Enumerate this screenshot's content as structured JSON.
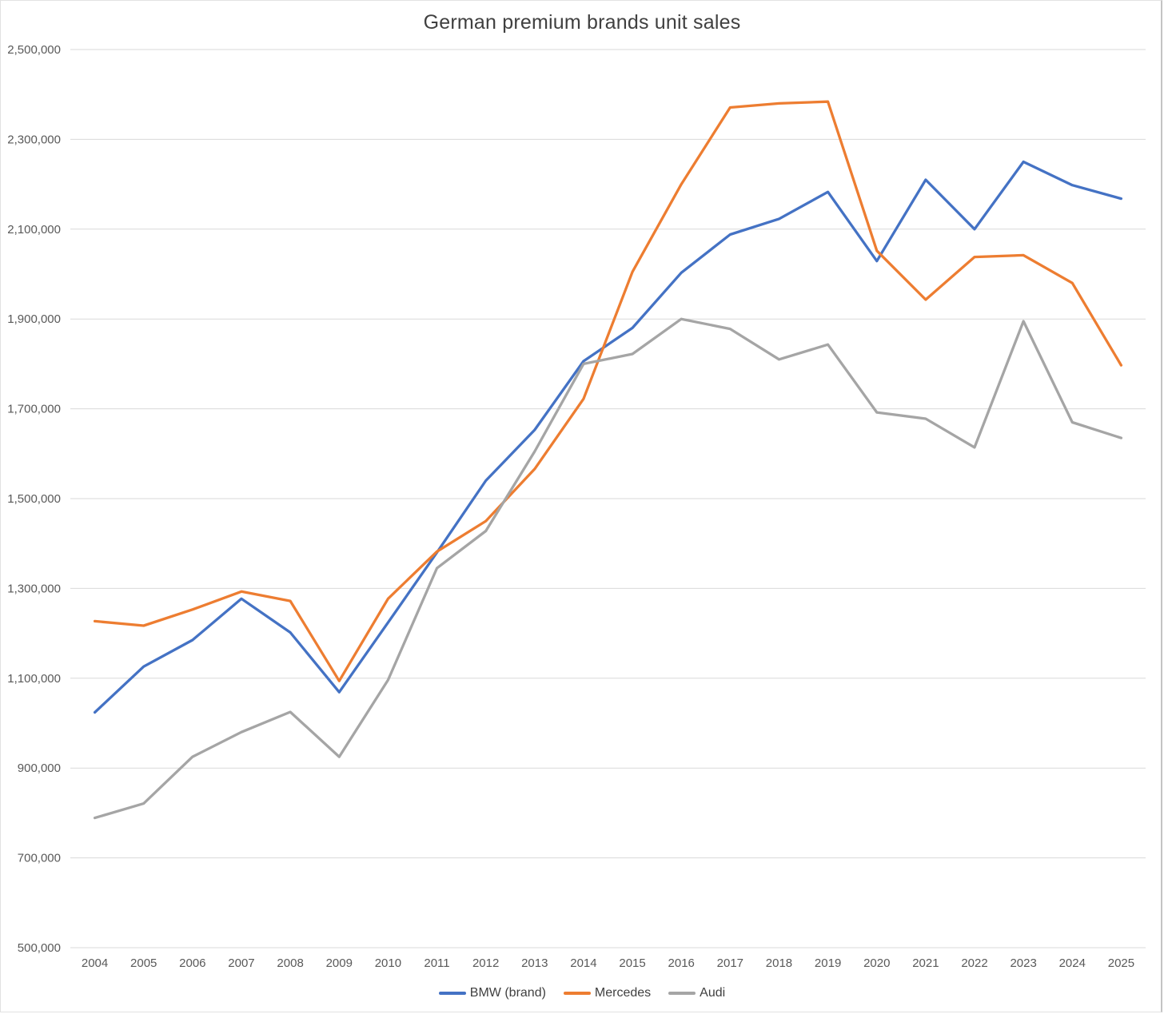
{
  "chart": {
    "title": "German premium brands unit sales"
  },
  "chart_data": {
    "type": "line",
    "title": "German premium brands unit sales",
    "xlabel": "",
    "ylabel": "",
    "grid": true,
    "legend_position": "bottom",
    "ylim": [
      500000,
      2500000
    ],
    "ytick_step": 200000,
    "yticks": [
      500000,
      700000,
      900000,
      1100000,
      1300000,
      1500000,
      1700000,
      1900000,
      2100000,
      2300000,
      2500000
    ],
    "ytick_labels": [
      "500,000",
      "700,000",
      "900,000",
      "1,100,000",
      "1,300,000",
      "1,500,000",
      "1,700,000",
      "1,900,000",
      "2,100,000",
      "2,300,000",
      "2,500,000"
    ],
    "x": [
      2004,
      2005,
      2006,
      2007,
      2008,
      2009,
      2010,
      2011,
      2012,
      2013,
      2014,
      2015,
      2016,
      2017,
      2018,
      2019,
      2020,
      2021,
      2022,
      2023,
      2024,
      2025
    ],
    "series": [
      {
        "name": "BMW (brand)",
        "color": "#4472C4",
        "values": [
          1024000,
          1126000,
          1185000,
          1277000,
          1202000,
          1069000,
          1224000,
          1380000,
          1540000,
          1653000,
          1806000,
          1880000,
          2003000,
          2088000,
          2123000,
          2183000,
          2029000,
          2210000,
          2100000,
          2250000,
          2198000,
          2168000
        ]
      },
      {
        "name": "Mercedes",
        "color": "#ED7D31",
        "values": [
          1227000,
          1217000,
          1253000,
          1293000,
          1272000,
          1094000,
          1277000,
          1382000,
          1450000,
          1566000,
          1722000,
          2005000,
          2200000,
          2371000,
          2380000,
          2384000,
          2052000,
          1943000,
          2038000,
          2042000,
          1980000,
          1797000
        ]
      },
      {
        "name": "Audi",
        "color": "#A5A5A5",
        "values": [
          789000,
          821000,
          925000,
          980000,
          1025000,
          925000,
          1096000,
          1345000,
          1428000,
          1605000,
          1800000,
          1822000,
          1900000,
          1878000,
          1810000,
          1843000,
          1692000,
          1678000,
          1614000,
          1895000,
          1670000,
          1635000
        ]
      }
    ],
    "colors": {
      "gridline": "#D9D9D9",
      "tick_label": "#595959",
      "title": "#404040"
    }
  }
}
